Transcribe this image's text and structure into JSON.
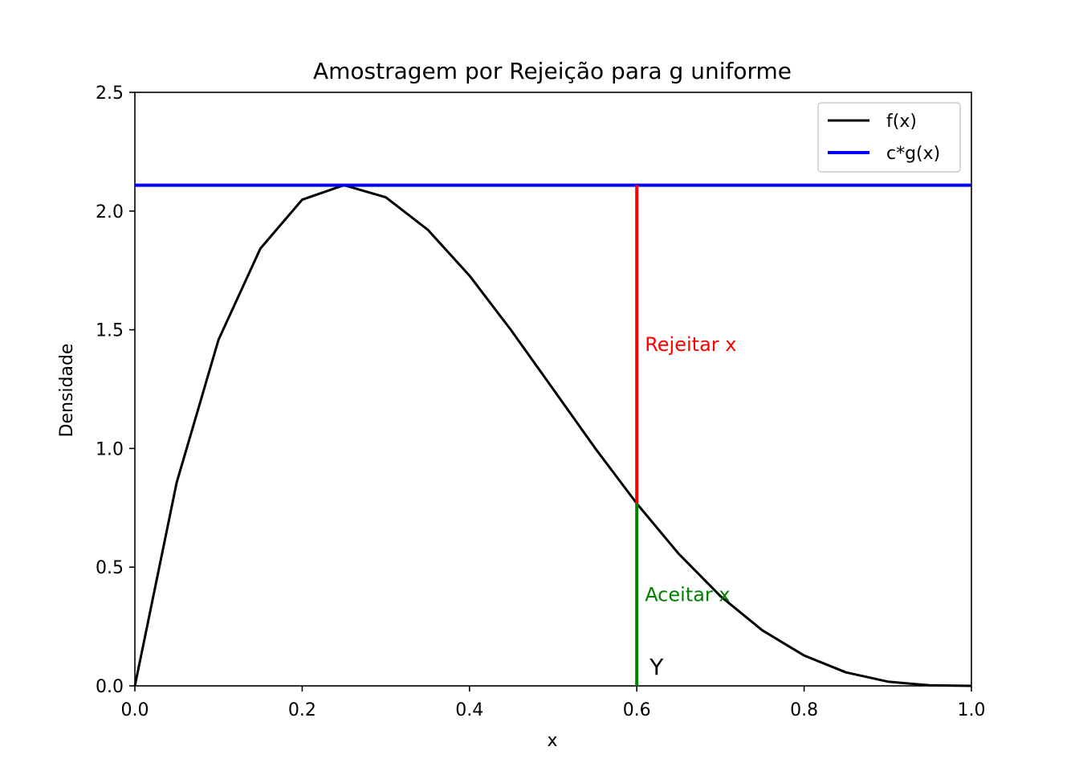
{
  "chart_data": {
    "type": "line",
    "title": "Amostragem por Rejeição para g uniforme",
    "xlabel": "x",
    "ylabel": "Densidade",
    "xlim": [
      0,
      1
    ],
    "ylim": [
      0,
      2.5
    ],
    "x_ticks": [
      "0.0",
      "0.2",
      "0.4",
      "0.6",
      "0.8",
      "1.0"
    ],
    "y_ticks": [
      "0.0",
      "0.5",
      "1.0",
      "1.5",
      "2.0",
      "2.5"
    ],
    "grid": false,
    "legend_position": "top-right",
    "series": [
      {
        "name": "f(x)",
        "color": "#000000",
        "x": [
          0,
          0.05,
          0.1,
          0.15,
          0.2,
          0.25,
          0.3,
          0.35,
          0.4,
          0.45,
          0.5,
          0.55,
          0.6,
          0.65,
          0.7,
          0.75,
          0.8,
          0.85,
          0.9,
          0.95,
          1.0
        ],
        "y": [
          0,
          0.857,
          1.458,
          1.842,
          2.048,
          2.109,
          2.058,
          1.922,
          1.728,
          1.497,
          1.25,
          1.002,
          0.768,
          0.557,
          0.378,
          0.234,
          0.128,
          0.057,
          0.018,
          0.0024,
          0
        ]
      },
      {
        "name": "c*g(x)",
        "color": "#0000ff",
        "x": [
          0,
          1
        ],
        "y": [
          2.109,
          2.109
        ]
      }
    ],
    "annotations": {
      "y_point": {
        "x": 0.6,
        "label": "Y"
      },
      "reject_segment": {
        "x": 0.6,
        "y_from": 0.768,
        "y_to": 2.109,
        "color": "#ff0000",
        "label": "Rejeitar x"
      },
      "accept_segment": {
        "x": 0.6,
        "y_from": 0,
        "y_to": 0.768,
        "color": "#008000",
        "label": "Aceitar x"
      }
    }
  }
}
